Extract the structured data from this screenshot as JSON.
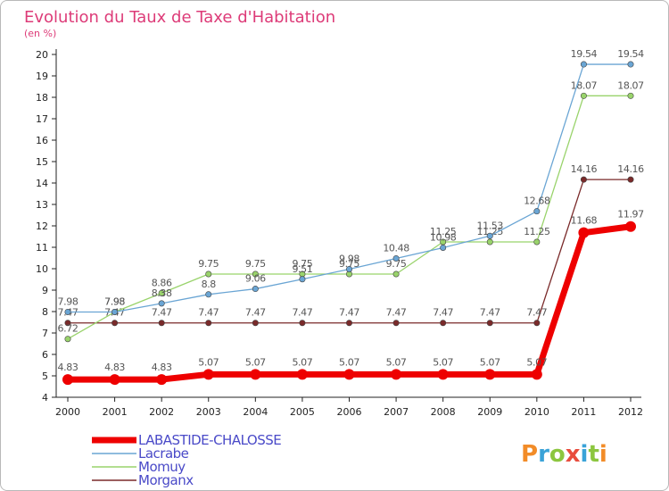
{
  "title": "Evolution du Taux de Taxe d'Habitation",
  "subtitle": "(en %)",
  "brand": {
    "text": "Proxiti",
    "colors": [
      "#f28c28",
      "#3aa3d8",
      "#8cc63f",
      "#e84c3d",
      "#3aa3d8",
      "#8cc63f",
      "#f28c28"
    ]
  },
  "chart_data": {
    "type": "line",
    "x": [
      2000,
      2001,
      2002,
      2003,
      2004,
      2005,
      2006,
      2007,
      2008,
      2009,
      2010,
      2011,
      2012
    ],
    "ylim": [
      4,
      20
    ],
    "yticks": [
      4,
      5,
      6,
      7,
      8,
      9,
      10,
      11,
      12,
      13,
      14,
      15,
      16,
      17,
      18,
      19,
      20
    ],
    "grid": false,
    "legend_position": "bottom-left",
    "series": [
      {
        "name": "Morganx",
        "color": "#7a2a2a",
        "values": [
          7.47,
          7.47,
          7.47,
          7.47,
          7.47,
          7.47,
          7.47,
          7.47,
          7.47,
          7.47,
          7.47,
          14.16,
          14.16
        ],
        "labels": [
          "7.47",
          "7.47",
          "7.47",
          "7.47",
          "7.47",
          "7.47",
          "7.47",
          "7.47",
          "7.47",
          "7.47",
          "7.47",
          "14.16",
          "14.16"
        ]
      },
      {
        "name": "Momuy",
        "color": "#99d36b",
        "values": [
          6.72,
          7.98,
          8.86,
          9.75,
          9.75,
          9.75,
          9.75,
          9.75,
          11.25,
          11.25,
          11.25,
          18.07,
          18.07
        ],
        "labels": [
          "6.72",
          "7.98",
          "8.86",
          "9.75",
          "9.75",
          "9.75",
          "9.75",
          "9.75",
          "11.25",
          "11.25",
          "11.25",
          "18.07",
          "18.07"
        ]
      },
      {
        "name": "Lacrabe",
        "color": "#6aa5d4",
        "values": [
          7.98,
          7.98,
          8.38,
          8.8,
          9.06,
          9.51,
          9.98,
          10.48,
          10.98,
          11.53,
          12.68,
          19.54,
          19.54
        ],
        "labels": [
          "7.98",
          "7.98",
          "8.38",
          "8.8",
          "9.06",
          "9.51",
          "9.98",
          "10.48",
          "10.98",
          "11.53",
          "12.68",
          "19.54",
          "19.54"
        ]
      },
      {
        "name": "LABASTIDE-CHALOSSE",
        "color": "#ee0000",
        "values": [
          4.83,
          4.83,
          4.83,
          5.07,
          5.07,
          5.07,
          5.07,
          5.07,
          5.07,
          5.07,
          5.07,
          11.68,
          11.97
        ],
        "labels": [
          "4.83",
          "4.83",
          "4.83",
          "5.07",
          "5.07",
          "5.07",
          "5.07",
          "5.07",
          "5.07",
          "5.07",
          "5.07",
          "11.68",
          "11.97"
        ]
      }
    ]
  },
  "legend": [
    {
      "name": "LABASTIDE-CHALOSSE",
      "color": "#ee0000"
    },
    {
      "name": "Lacrabe",
      "color": "#6aa5d4"
    },
    {
      "name": "Momuy",
      "color": "#99d36b"
    },
    {
      "name": "Morganx",
      "color": "#7a2a2a"
    }
  ]
}
